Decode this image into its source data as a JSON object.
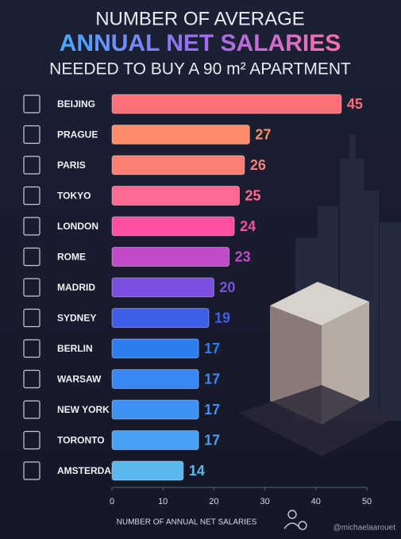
{
  "chart_data": {
    "type": "bar",
    "orientation": "horizontal",
    "title_lines": [
      "NUMBER OF AVERAGE",
      "ANNUAL NET SALARIES",
      "NEEDED TO BUY A 90 m² APARTMENT"
    ],
    "categories": [
      "BEIJING",
      "PRAGUE",
      "PARIS",
      "TOKYO",
      "LONDON",
      "ROME",
      "MADRID",
      "SYDNEY",
      "BERLIN",
      "WARSAW",
      "NEW YORK",
      "TORONTO",
      "AMSTERDAM"
    ],
    "values": [
      45,
      27,
      26,
      25,
      24,
      23,
      20,
      19,
      17,
      17,
      17,
      17,
      14
    ],
    "colors": [
      "#ff6f78",
      "#ff8c68",
      "#ff7d72",
      "#ff6a92",
      "#ff4fa3",
      "#c04cc8",
      "#7a4fe0",
      "#3f5fe8",
      "#2f7cf0",
      "#3887f4",
      "#3e90f5",
      "#48a0f6",
      "#5ab8ee"
    ],
    "xlim": [
      0,
      50
    ],
    "xticks": [
      0,
      10,
      20,
      30,
      40,
      50
    ],
    "xlabel": "NUMBER OF ANNUAL NET SALARIES",
    "watermark": "@michaelaarouet"
  }
}
